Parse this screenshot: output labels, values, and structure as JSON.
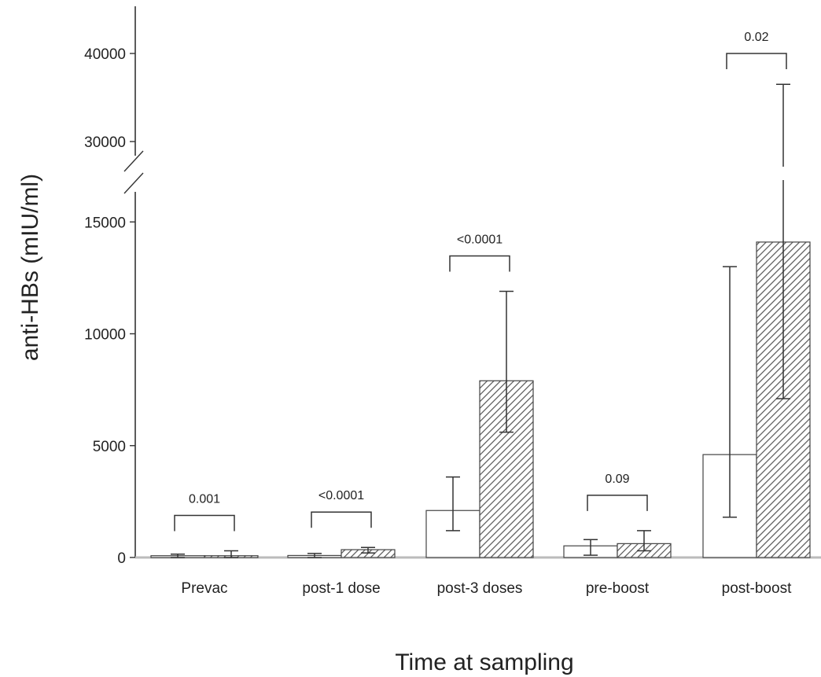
{
  "chart_data": {
    "type": "bar",
    "title": "",
    "xlabel": "Time at sampling",
    "ylabel": "anti-HBs (mIU/ml)",
    "categories": [
      "Prevac",
      "post-1 dose",
      "post-3 doses",
      "pre-boost",
      "post-boost"
    ],
    "axis_break": {
      "lower_max": 16000,
      "upper_min": 27000,
      "upper_max": 42000
    },
    "yticks_lower": [
      {
        "value": 0,
        "label": "0"
      },
      {
        "value": 5000,
        "label": "5000"
      },
      {
        "value": 10000,
        "label": "10000"
      },
      {
        "value": 15000,
        "label": "15000"
      }
    ],
    "yticks_upper": [
      {
        "value": 30000,
        "label": "30000"
      },
      {
        "value": 40000,
        "label": "40000"
      }
    ],
    "series": [
      {
        "fill": "open",
        "values": [
          80,
          90,
          2100,
          520,
          4600
        ],
        "error_low": [
          0,
          0,
          1200,
          100,
          1800
        ],
        "error_high": [
          150,
          180,
          3600,
          800,
          13000
        ]
      },
      {
        "fill": "hatched",
        "values": [
          80,
          350,
          7900,
          620,
          14100
        ],
        "error_low": [
          0,
          200,
          5600,
          300,
          7100
        ],
        "error_high": [
          300,
          450,
          11900,
          1200,
          36500
        ]
      }
    ],
    "comparisons": [
      "0.001",
      "<0.0001",
      "<0.0001",
      "0.09",
      "0.02"
    ],
    "colors": {
      "axis": "#333333",
      "bar_stroke": "#444444",
      "hatch": "#555555",
      "baseline": "#bbbbbb"
    }
  }
}
